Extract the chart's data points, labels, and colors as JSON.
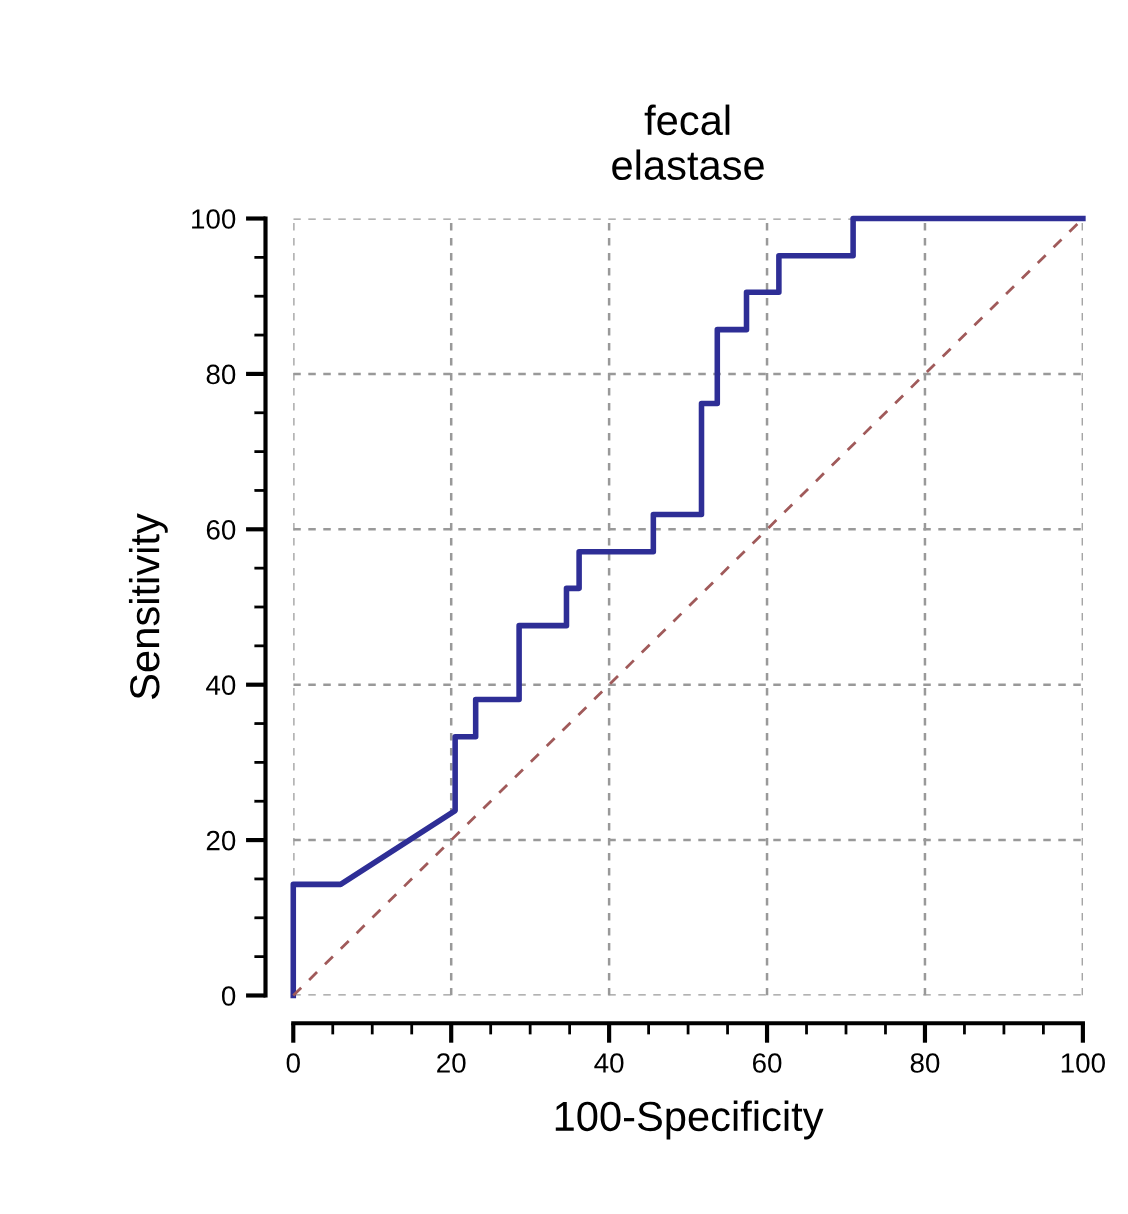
{
  "chart_data": {
    "type": "line",
    "title": "fecal\nelastase",
    "xlabel": "100-Specificity",
    "ylabel": "Sensitivity",
    "xlim": [
      0,
      100
    ],
    "ylim": [
      0,
      100
    ],
    "xticks": [
      0,
      20,
      40,
      60,
      80,
      100
    ],
    "yticks": [
      0,
      20,
      40,
      60,
      80,
      100
    ],
    "grid": true,
    "series": [
      {
        "color": "#2e2e96",
        "line_style": "solid",
        "x": [
          0,
          0,
          6,
          20.5,
          20.5,
          23.1,
          23.1,
          28.6,
          28.6,
          34.6,
          34.6,
          36.2,
          36.2,
          45.6,
          45.6,
          51.7,
          51.7,
          53.7,
          53.7,
          57.4,
          57.4,
          61.5,
          61.5,
          70.9,
          70.9,
          100
        ],
        "values": [
          0,
          14.3,
          14.3,
          23.8,
          33.3,
          33.3,
          38.1,
          38.1,
          47.6,
          47.6,
          52.4,
          52.4,
          57.1,
          57.1,
          61.9,
          61.9,
          76.2,
          76.2,
          85.7,
          85.7,
          90.5,
          90.5,
          95.2,
          95.2,
          100,
          100
        ]
      },
      {
        "color": "#a05a5a",
        "line_style": "dashed",
        "x": [
          0,
          100
        ],
        "values": [
          0,
          100
        ]
      }
    ]
  }
}
